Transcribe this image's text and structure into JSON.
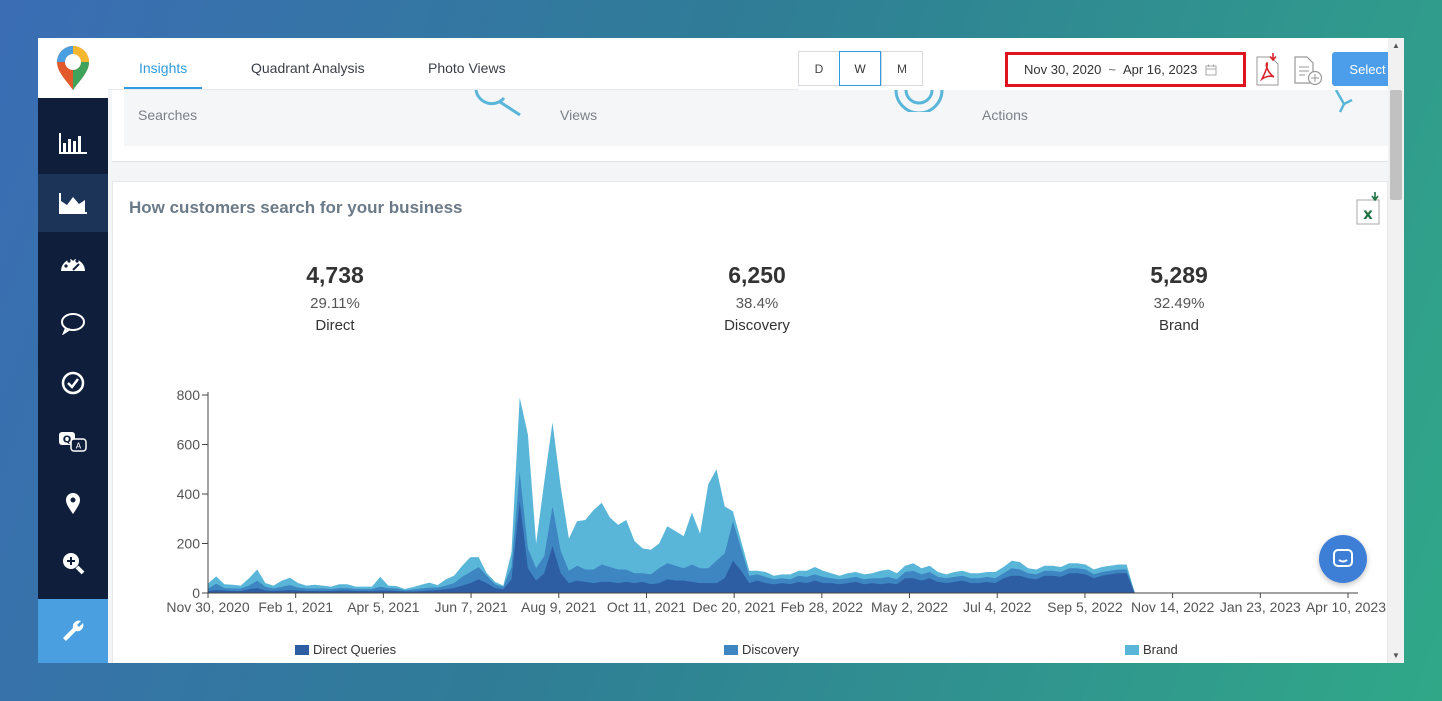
{
  "tabs": [
    {
      "label": "Insights",
      "active": true
    },
    {
      "label": "Quadrant Analysis",
      "active": false
    },
    {
      "label": "Photo Views",
      "active": false
    }
  ],
  "granularity": [
    {
      "label": "D",
      "active": false
    },
    {
      "label": "W",
      "active": true
    },
    {
      "label": "M",
      "active": false
    }
  ],
  "date_range": {
    "start": "Nov 30, 2020",
    "separator": "~",
    "end": "Apr 16, 2023"
  },
  "toolbar": {
    "select_filters_label": "Select Filters"
  },
  "summary": {
    "labels": [
      "Searches",
      "Views",
      "Actions"
    ]
  },
  "card": {
    "title": "How customers search for your business",
    "stats": [
      {
        "value": "4,738",
        "percent": "29.11%",
        "label": "Direct"
      },
      {
        "value": "6,250",
        "percent": "38.4%",
        "label": "Discovery"
      },
      {
        "value": "5,289",
        "percent": "32.49%",
        "label": "Brand"
      }
    ]
  },
  "colors": {
    "direct": "#2d5ea4",
    "discovery": "#3d86c2",
    "brand": "#5ab6d8",
    "accent": "#2f9be0",
    "highlight": "#e0141e",
    "sidebar": "#0f1e3a"
  },
  "icons": [
    "bar-chart-icon",
    "area-chart-icon",
    "dashboard-gauge-icon",
    "chat-bubble-icon",
    "check-circle-icon",
    "qa-icon",
    "location-pin-icon",
    "zoom-in-icon",
    "wrench-icon",
    "pdf-download-icon",
    "add-file-icon",
    "calendar-icon",
    "excel-download-icon",
    "chat-icon"
  ],
  "chart_data": {
    "type": "area",
    "stacked": true,
    "x_tick_labels": [
      "Nov 30, 2020",
      "Feb 1, 2021",
      "Apr 5, 2021",
      "Jun 7, 2021",
      "Aug 9, 2021",
      "Oct 11, 2021",
      "Dec 20, 2021",
      "Feb 28, 2022",
      "May 2, 2022",
      "Jul 4, 2022",
      "Sep 5, 2022",
      "Nov 14, 2022",
      "Jan 23, 2023",
      "Apr 10, 2023"
    ],
    "y_ticks": [
      0,
      200,
      400,
      600,
      800
    ],
    "ylim": [
      0,
      800
    ],
    "grid": false,
    "legend_position": "bottom",
    "series_names": [
      "Direct Queries",
      "Discovery",
      "Brand"
    ],
    "x": [
      0,
      1,
      2,
      3,
      4,
      5,
      6,
      7,
      8,
      9,
      10,
      11,
      12,
      13,
      14,
      15,
      16,
      17,
      18,
      19,
      20,
      21,
      22,
      23,
      24,
      25,
      26,
      27,
      28,
      29,
      30,
      31,
      32,
      33,
      34,
      35,
      36,
      37,
      38,
      39,
      40,
      41,
      42,
      43,
      44,
      45,
      46,
      47,
      48,
      49,
      50,
      51,
      52,
      53,
      54,
      55,
      56,
      57,
      58,
      59,
      60,
      61,
      62,
      63,
      64,
      65,
      66,
      67,
      68,
      69,
      70,
      71,
      72,
      73,
      74,
      75,
      76,
      77,
      78,
      79,
      80,
      81,
      82,
      83,
      84,
      85,
      86,
      87,
      88,
      89,
      90,
      91,
      92,
      93,
      94,
      95,
      96,
      97,
      98,
      99,
      100,
      101,
      102,
      103,
      104,
      105,
      106,
      107,
      108,
      109,
      110,
      111,
      112,
      113,
      114,
      115,
      116,
      117,
      118,
      119,
      120,
      121,
      122,
      123,
      124,
      125,
      126,
      127,
      128,
      129,
      130,
      131,
      132,
      133,
      134,
      135,
      136,
      137,
      138,
      139
    ],
    "series": [
      {
        "name": "Direct Queries",
        "values": [
          8,
          12,
          10,
          8,
          8,
          15,
          20,
          10,
          8,
          10,
          12,
          10,
          8,
          8,
          8,
          8,
          10,
          10,
          8,
          8,
          8,
          10,
          10,
          8,
          6,
          6,
          8,
          10,
          12,
          15,
          20,
          30,
          40,
          55,
          40,
          20,
          15,
          55,
          370,
          100,
          50,
          80,
          190,
          80,
          40,
          50,
          45,
          40,
          45,
          45,
          40,
          45,
          40,
          45,
          35,
          40,
          55,
          50,
          50,
          45,
          40,
          40,
          40,
          60,
          130,
          90,
          40,
          50,
          40,
          35,
          40,
          35,
          45,
          40,
          50,
          40,
          40,
          35,
          40,
          45,
          35,
          40,
          35,
          40,
          35,
          60,
          60,
          50,
          60,
          45,
          40,
          45,
          50,
          40,
          40,
          45,
          40,
          60,
          70,
          70,
          60,
          55,
          70,
          70,
          65,
          80,
          80,
          75,
          60,
          70,
          75,
          80,
          80,
          0,
          0,
          0,
          0,
          0,
          0,
          0,
          0,
          0,
          0,
          0,
          0,
          0,
          0,
          0,
          0,
          0,
          0,
          0,
          0,
          0,
          0,
          0,
          0,
          0,
          0,
          0
        ]
      },
      {
        "name": "Discovery",
        "values": [
          10,
          25,
          10,
          10,
          10,
          15,
          30,
          15,
          10,
          15,
          20,
          12,
          10,
          10,
          10,
          8,
          10,
          10,
          8,
          8,
          8,
          15,
          10,
          10,
          5,
          8,
          10,
          12,
          10,
          15,
          20,
          35,
          45,
          50,
          30,
          15,
          10,
          50,
          120,
          80,
          50,
          70,
          160,
          90,
          50,
          60,
          50,
          55,
          70,
          60,
          55,
          50,
          40,
          35,
          40,
          60,
          65,
          60,
          50,
          70,
          60,
          60,
          90,
          100,
          160,
          90,
          30,
          25,
          25,
          20,
          20,
          20,
          25,
          25,
          25,
          25,
          20,
          20,
          20,
          20,
          20,
          20,
          25,
          25,
          20,
          25,
          30,
          25,
          25,
          20,
          20,
          20,
          20,
          20,
          20,
          20,
          20,
          20,
          30,
          25,
          20,
          20,
          20,
          20,
          20,
          20,
          20,
          20,
          15,
          15,
          15,
          15,
          15,
          0,
          0,
          0,
          0,
          0,
          0,
          0,
          0,
          0,
          0,
          0,
          0,
          0,
          0,
          0,
          0,
          0,
          0,
          0,
          0,
          0,
          0,
          0,
          0,
          0,
          0,
          0
        ]
      },
      {
        "name": "Brand",
        "values": [
          20,
          30,
          15,
          15,
          12,
          30,
          45,
          15,
          12,
          25,
          30,
          18,
          12,
          15,
          12,
          10,
          15,
          15,
          10,
          10,
          10,
          40,
          10,
          10,
          5,
          10,
          15,
          20,
          10,
          25,
          30,
          45,
          60,
          40,
          10,
          10,
          5,
          60,
          300,
          460,
          100,
          300,
          340,
          260,
          130,
          180,
          200,
          240,
          250,
          200,
          180,
          200,
          130,
          100,
          100,
          100,
          150,
          140,
          130,
          210,
          140,
          340,
          370,
          190,
          40,
          30,
          20,
          15,
          20,
          15,
          15,
          20,
          20,
          25,
          30,
          25,
          20,
          15,
          20,
          20,
          20,
          20,
          30,
          30,
          25,
          25,
          30,
          25,
          25,
          20,
          15,
          20,
          20,
          20,
          20,
          20,
          25,
          25,
          30,
          30,
          20,
          20,
          20,
          20,
          20,
          20,
          20,
          20,
          20,
          20,
          20,
          20,
          20,
          0,
          0,
          0,
          0,
          0,
          0,
          0,
          0,
          0,
          0,
          0,
          0,
          0,
          0,
          0,
          0,
          0,
          0,
          0,
          0,
          0,
          0,
          0,
          0,
          0,
          0,
          0
        ]
      }
    ]
  }
}
